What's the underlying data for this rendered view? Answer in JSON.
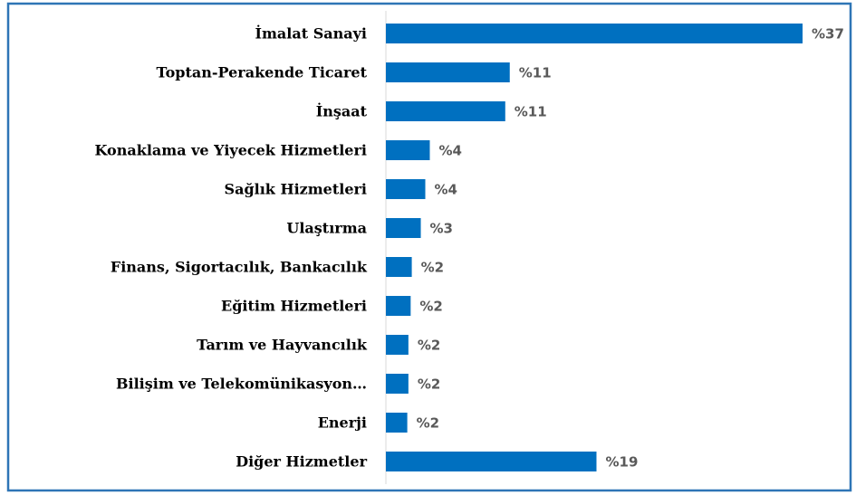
{
  "chart_data": {
    "type": "bar",
    "orientation": "horizontal",
    "categories": [
      "İmalat Sanayi",
      "Toptan-Perakende Ticaret",
      "İnşaat",
      "Konaklama ve Yiyecek Hizmetleri",
      "Sağlık Hizmetleri",
      "Ulaştırma",
      "Finans, Sigortacılık, Bankacılık",
      "Eğitim Hizmetleri",
      "Tarım ve Hayvancılık",
      "Bilişim ve Telekomünikasyon…",
      "Enerji",
      "Diğer Hizmetler"
    ],
    "values": [
      37,
      11.0,
      10.6,
      3.9,
      3.5,
      3.1,
      2.3,
      2.2,
      2.0,
      2.0,
      1.9,
      18.7
    ],
    "value_labels": [
      "%37",
      "%11",
      "%11",
      "%4",
      "%4",
      "%3",
      "%2",
      "%2",
      "%2",
      "%2",
      "%2",
      "%19"
    ],
    "color": "#0070c0"
  }
}
